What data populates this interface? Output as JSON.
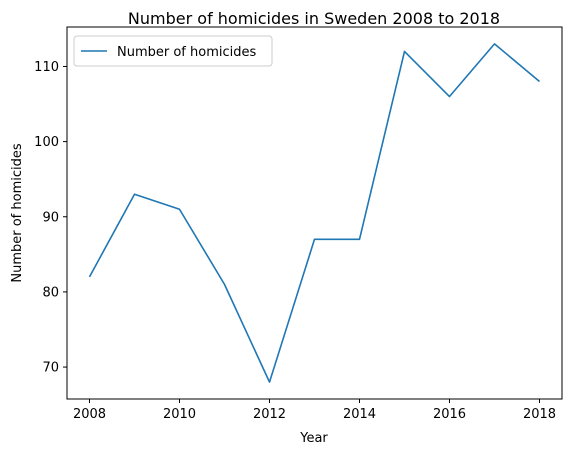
{
  "chart_data": {
    "type": "line",
    "title": "Number of homicides in Sweden 2008 to 2018",
    "xlabel": "Year",
    "ylabel": "Number of homicides",
    "x": [
      2008,
      2009,
      2010,
      2011,
      2012,
      2013,
      2014,
      2015,
      2016,
      2017,
      2018
    ],
    "series": [
      {
        "name": "Number of homicides",
        "values": [
          82,
          93,
          91,
          81,
          68,
          87,
          87,
          112,
          106,
          113,
          108
        ],
        "color": "#1f77b4"
      }
    ],
    "xlim": [
      2007.5,
      2018.5
    ],
    "ylim": [
      65.75,
      115.25
    ],
    "xticks": [
      2008,
      2010,
      2012,
      2014,
      2016,
      2018
    ],
    "yticks": [
      70,
      80,
      90,
      100,
      110
    ],
    "grid": false,
    "legend_position": "upper left"
  }
}
